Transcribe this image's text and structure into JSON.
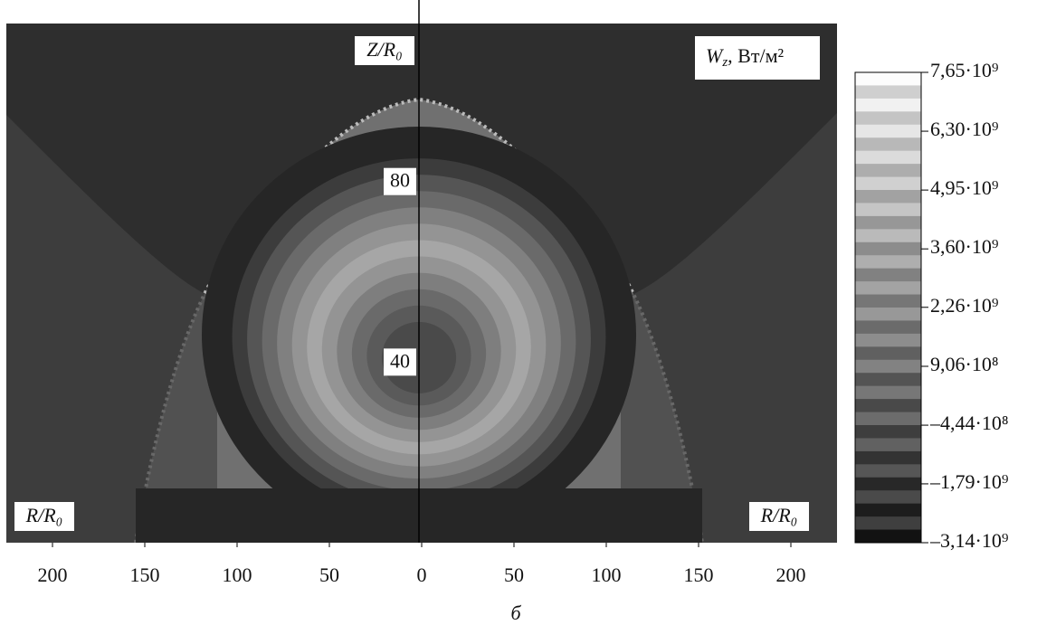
{
  "chart_data": {
    "type": "contour",
    "panel_label": "б",
    "y_label": "Z/R₀",
    "x_label_left": "R/R₀",
    "x_label_right": "R/R₀",
    "colorbar_label": {
      "symbol": "W",
      "subscript": "z",
      "unit": ", Вт/м²"
    },
    "xlim": [
      -225,
      225
    ],
    "xticks": [
      {
        "value": -200,
        "label": "200"
      },
      {
        "value": -150,
        "label": "150"
      },
      {
        "value": -100,
        "label": "100"
      },
      {
        "value": -50,
        "label": "50"
      },
      0,
      50,
      100,
      150,
      200
    ],
    "ylim": [
      0,
      115
    ],
    "yticks": [
      40,
      80
    ],
    "clim": [
      -3140000000,
      7650000000
    ],
    "cticks": [
      {
        "value": 7650000000,
        "label": "7,65·10⁹"
      },
      {
        "value": 6300000000,
        "label": "6,30·10⁹"
      },
      {
        "value": 4950000000,
        "label": "4,95·10⁹"
      },
      {
        "value": 3600000000,
        "label": "3,60·10⁹"
      },
      {
        "value": 2260000000,
        "label": "2,26·10⁹"
      },
      {
        "value": 906000000,
        "label": "9,06·10⁸"
      },
      {
        "value": -444000000,
        "label": "–4,44·10⁸"
      },
      {
        "value": -1790000000,
        "label": "–1,79·10⁹"
      },
      {
        "value": -3140000000,
        "label": "–3,14·10⁹"
      }
    ]
  }
}
